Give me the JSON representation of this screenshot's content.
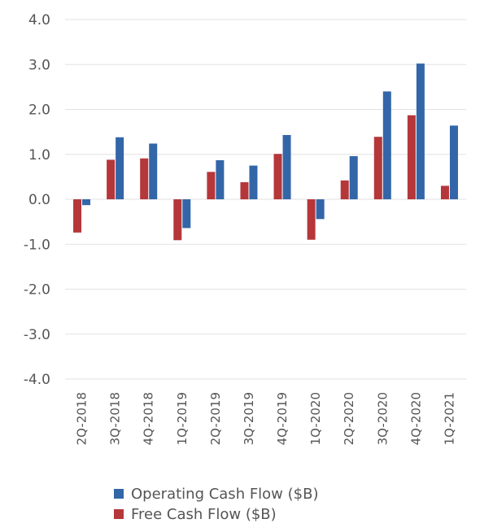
{
  "chart_data": {
    "type": "bar",
    "title": "",
    "xlabel": "",
    "ylabel": "",
    "ylim": [
      -4.0,
      4.0
    ],
    "y_ticks": [
      "4.0",
      "3.0",
      "2.0",
      "1.0",
      "0.0",
      "-1.0",
      "-2.0",
      "-3.0",
      "-4.0"
    ],
    "grid": true,
    "legend_placement": "bottom",
    "categories": [
      "2Q-2018",
      "3Q-2018",
      "4Q-2018",
      "1Q-2019",
      "2Q-2019",
      "3Q-2019",
      "4Q-2019",
      "1Q-2020",
      "2Q-2020",
      "3Q-2020",
      "4Q-2020",
      "1Q-2021"
    ],
    "series": [
      {
        "name": "Free Cash Flow ($B)",
        "color": "#b5373a",
        "values": [
          -0.74,
          0.88,
          0.91,
          -0.91,
          0.61,
          0.38,
          1.01,
          -0.9,
          0.42,
          1.39,
          1.87,
          0.3
        ]
      },
      {
        "name": "Operating Cash Flow ($B)",
        "color": "#3366a8",
        "values": [
          -0.13,
          1.38,
          1.24,
          -0.64,
          0.87,
          0.75,
          1.43,
          -0.44,
          0.96,
          2.4,
          3.02,
          1.64
        ]
      }
    ],
    "legend_order": [
      1,
      0
    ]
  }
}
